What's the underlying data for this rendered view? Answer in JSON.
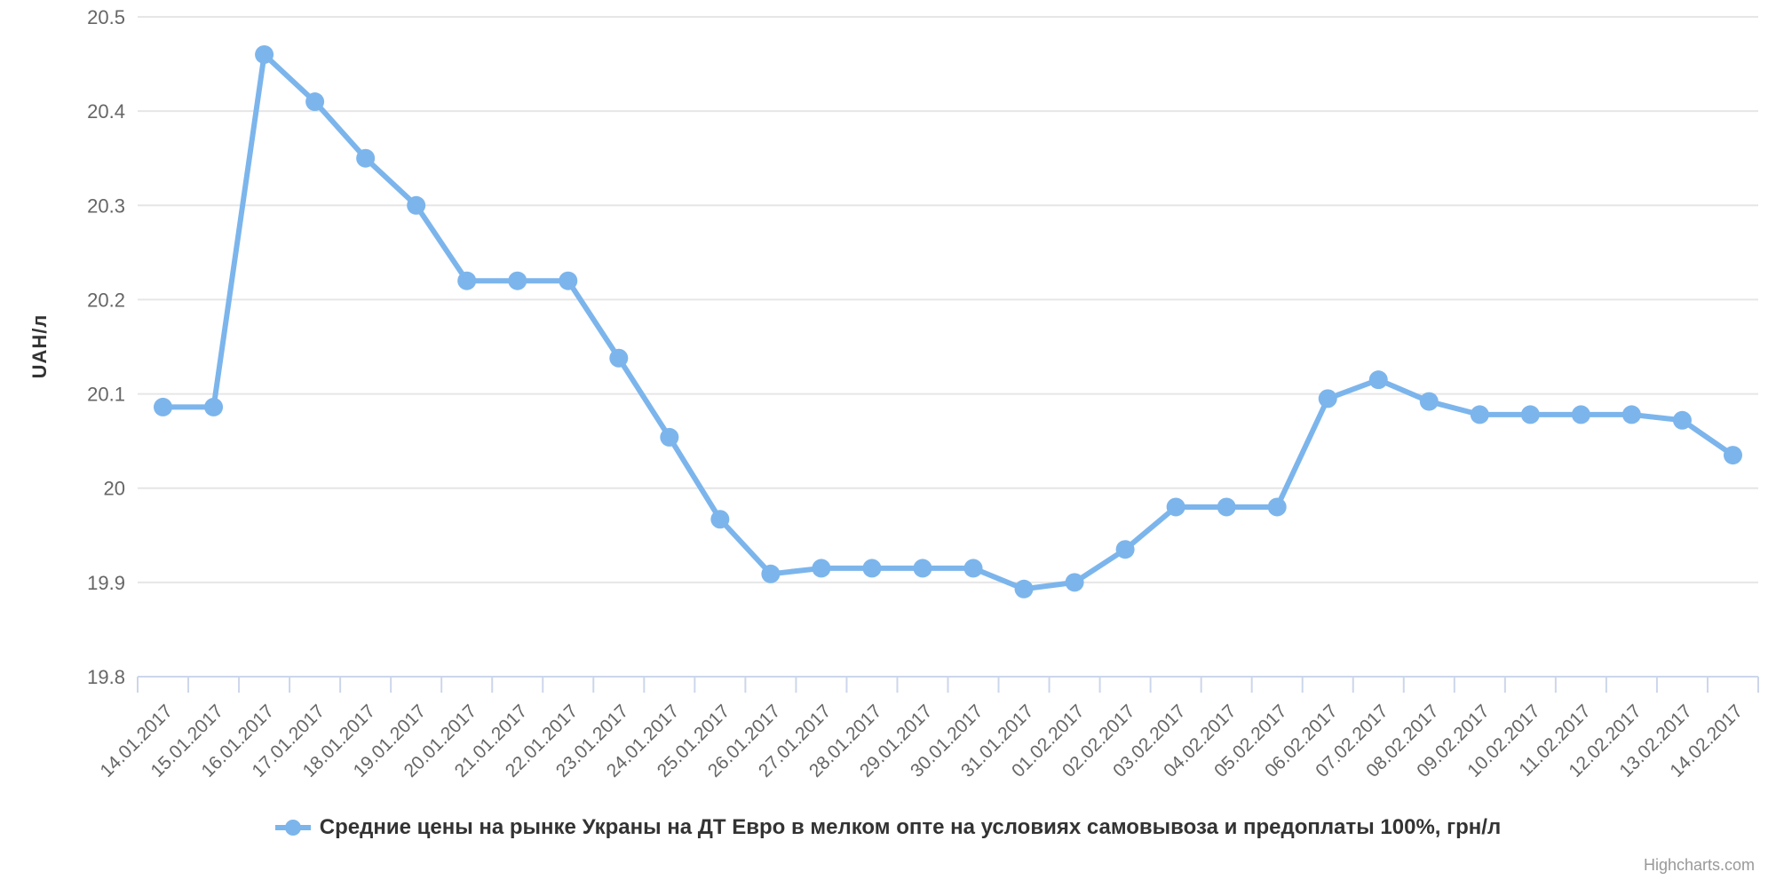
{
  "chart_data": {
    "type": "line",
    "title": "",
    "xlabel": "",
    "ylabel": "UAH/л",
    "ylim": [
      19.8,
      20.5
    ],
    "yticks": [
      "19.8",
      "19.9",
      "20",
      "20.1",
      "20.2",
      "20.3",
      "20.4",
      "20.5"
    ],
    "grid": true,
    "xtick_rotation": -45,
    "legend_position": "bottom-center",
    "categories": [
      "14.01.2017",
      "15.01.2017",
      "16.01.2017",
      "17.01.2017",
      "18.01.2017",
      "19.01.2017",
      "20.01.2017",
      "21.01.2017",
      "22.01.2017",
      "23.01.2017",
      "24.01.2017",
      "25.01.2017",
      "26.01.2017",
      "27.01.2017",
      "28.01.2017",
      "29.01.2017",
      "30.01.2017",
      "31.01.2017",
      "01.02.2017",
      "02.02.2017",
      "03.02.2017",
      "04.02.2017",
      "05.02.2017",
      "06.02.2017",
      "07.02.2017",
      "08.02.2017",
      "09.02.2017",
      "10.02.2017",
      "11.02.2017",
      "12.02.2017",
      "13.02.2017",
      "14.02.2017"
    ],
    "series": [
      {
        "name": "Средние цены на рынке Украны на ДТ Евро в мелком опте на условиях самовывоза и предоплаты 100%, грн/л",
        "values": [
          20.086,
          20.086,
          20.46,
          20.41,
          20.35,
          20.3,
          20.22,
          20.22,
          20.22,
          20.138,
          20.054,
          19.967,
          19.909,
          19.915,
          19.915,
          19.915,
          19.915,
          19.893,
          19.9,
          19.935,
          19.98,
          19.98,
          19.98,
          20.095,
          20.115,
          20.092,
          20.078,
          20.078,
          20.078,
          20.078,
          20.072,
          20.035
        ]
      }
    ],
    "colors": {
      "series": "#7cb5ec",
      "grid": "#e6e6e6",
      "axis_line": "#ccd6eb",
      "tick_label": "#666666",
      "axis_title": "#333333",
      "legend_text": "#333333",
      "credits": "#999999"
    }
  },
  "credits": {
    "text": "Highcharts.com"
  }
}
